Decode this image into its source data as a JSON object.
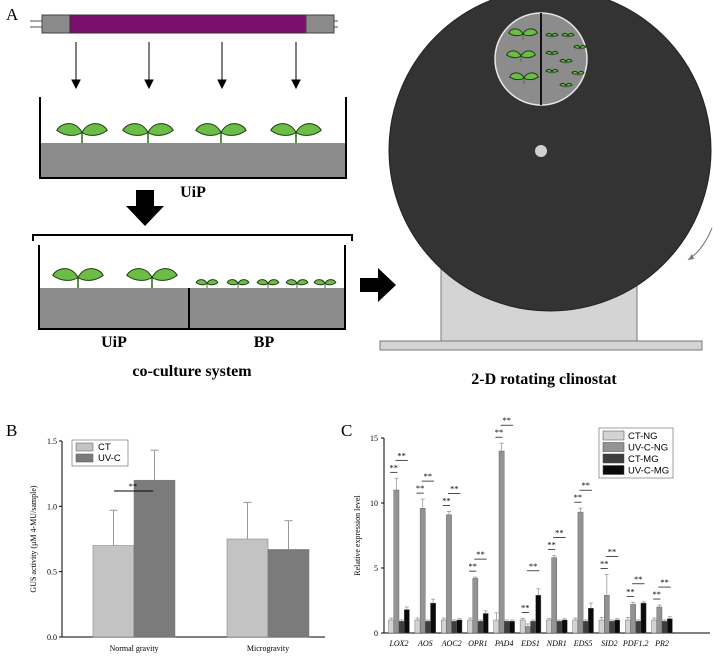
{
  "panel_a": {
    "label": "A",
    "uip_label_top": "UiP",
    "uip_label_bottom": "UiP",
    "bp_label": "BP",
    "coculture_caption": "co-culture system",
    "clinostat_caption": "2-D rotating clinostat"
  },
  "colors": {
    "uv_lamp": "#7a0f6d",
    "lamp_cap": "#8a8a8a",
    "soil": "#8c8c8c",
    "leaf": "#6bbd45",
    "disk": "#333333",
    "stand": "#d4d4d4",
    "ct": "#c3c3c3",
    "uvc": "#7b7b7b",
    "ct_ng": "#d3d3d3",
    "uvc_ng": "#939393",
    "ct_mg": "#3e3e3e",
    "uvc_mg": "#0a0a0a"
  },
  "chart_data": [
    {
      "panel": "B",
      "type": "bar",
      "ylabel": "GUS activity (μM 4-MU/sample)",
      "ylim": [
        0,
        1.5
      ],
      "yticks": [
        "0.0",
        "0.5",
        "1.0",
        "1.5"
      ],
      "categories": [
        "Normal gravity",
        "Microgravity"
      ],
      "series": [
        {
          "name": "CT",
          "values": [
            0.7,
            0.75
          ],
          "errors": [
            0.27,
            0.28
          ]
        },
        {
          "name": "UV-C",
          "values": [
            1.2,
            0.67
          ],
          "errors": [
            0.23,
            0.22
          ]
        }
      ],
      "significance": [
        {
          "category": "Normal gravity",
          "label": "**"
        }
      ],
      "legend": "top-left"
    },
    {
      "panel": "C",
      "type": "bar",
      "ylabel": "Relative expression level",
      "ylim": [
        0,
        15
      ],
      "yticks": [
        "0",
        "5",
        "10",
        "15"
      ],
      "categories": [
        "LOX2",
        "AOS",
        "AOC2",
        "OPR1",
        "PAD4",
        "EDS1",
        "NDR1",
        "EDS5",
        "SID2",
        "PDF1.2",
        "PR2"
      ],
      "series": [
        {
          "name": "CT-NG",
          "values": [
            1.0,
            1.0,
            1.0,
            1.0,
            1.0,
            1.0,
            1.0,
            1.0,
            1.0,
            1.0,
            1.0
          ],
          "errors": [
            0.15,
            0.15,
            0.15,
            0.15,
            0.55,
            0.12,
            0.1,
            0.15,
            0.2,
            0.2,
            0.15
          ]
        },
        {
          "name": "UV-C-NG",
          "values": [
            11.0,
            9.6,
            9.1,
            4.2,
            14.0,
            0.5,
            5.8,
            9.3,
            2.9,
            2.2,
            2.0
          ],
          "errors": [
            0.9,
            0.7,
            0.25,
            0.1,
            0.6,
            0.2,
            0.15,
            0.3,
            1.6,
            0.15,
            0.15
          ]
        },
        {
          "name": "CT-MG",
          "values": [
            0.9,
            0.9,
            0.9,
            0.9,
            0.9,
            0.9,
            0.9,
            0.9,
            0.9,
            0.9,
            0.9
          ],
          "errors": [
            0.1,
            0.1,
            0.1,
            0.1,
            0.1,
            0.1,
            0.1,
            0.1,
            0.1,
            0.1,
            0.1
          ]
        },
        {
          "name": "UV-C-MG",
          "values": [
            1.8,
            2.3,
            1.0,
            1.5,
            0.9,
            2.9,
            1.0,
            1.9,
            1.0,
            2.3,
            1.1
          ],
          "errors": [
            0.2,
            0.3,
            0.1,
            0.2,
            0.1,
            0.5,
            0.1,
            0.4,
            0.1,
            0.1,
            0.15
          ]
        }
      ],
      "significance": "** between bar pairs for every gene",
      "legend": "top-right"
    }
  ]
}
